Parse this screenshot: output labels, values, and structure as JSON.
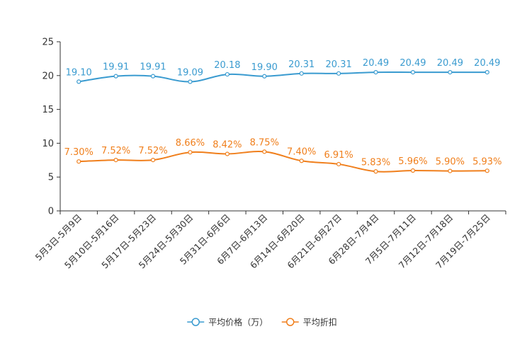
{
  "chart_data": {
    "type": "line",
    "categories": [
      "5月3日-5月9日",
      "5月10日-5月16日",
      "5月17日-5月23日",
      "5月24日-5月30日",
      "5月31日-6月6日",
      "6月7日-6月13日",
      "6月14日-6月20日",
      "6月21日-6月27日",
      "6月28日-7月4日",
      "7月5日-7月11日",
      "7月12日-7月18日",
      "7月19日-7月25日"
    ],
    "ylim": [
      0,
      25
    ],
    "yticks": [
      "0",
      "5",
      "10",
      "15",
      "20",
      "25"
    ],
    "series": [
      {
        "name": "平均价格（万）",
        "color": "#3a9bd0",
        "values": [
          19.1,
          19.91,
          19.91,
          19.09,
          20.18,
          19.9,
          20.31,
          20.31,
          20.49,
          20.49,
          20.49,
          20.49
        ],
        "labels": [
          "19.10",
          "19.91",
          "19.91",
          "19.09",
          "20.18",
          "19.90",
          "20.31",
          "20.31",
          "20.49",
          "20.49",
          "20.49",
          "20.49"
        ]
      },
      {
        "name": "平均折扣",
        "color": "#f07f1c",
        "values": [
          7.3,
          7.52,
          7.52,
          8.66,
          8.42,
          8.75,
          7.4,
          6.91,
          5.83,
          5.96,
          5.9,
          5.93
        ],
        "labels": [
          "7.30%",
          "7.52%",
          "7.52%",
          "8.66%",
          "8.42%",
          "8.75%",
          "7.40%",
          "6.91%",
          "5.83%",
          "5.96%",
          "5.90%",
          "5.93%"
        ]
      }
    ],
    "legend_position": "bottom-center"
  }
}
